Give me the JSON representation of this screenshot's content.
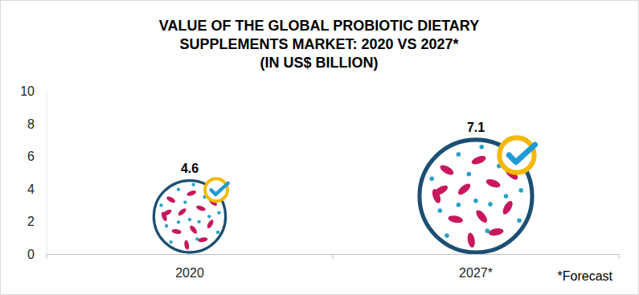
{
  "chart_data": {
    "type": "bar",
    "title": "VALUE OF THE GLOBAL PROBIOTIC DIETARY\nSUPPLEMENTS MARKET: 2020 VS 2027*\n(IN US$ BILLION)",
    "categories": [
      "2020",
      "2027*"
    ],
    "values": [
      4.6,
      7.1
    ],
    "color": "#1b4f72",
    "ylim": [
      0,
      10
    ],
    "yticks": [
      0,
      2,
      4,
      6,
      8,
      10
    ],
    "grid": false,
    "data_labels": true,
    "annotations": [
      "*Forecast"
    ]
  }
}
